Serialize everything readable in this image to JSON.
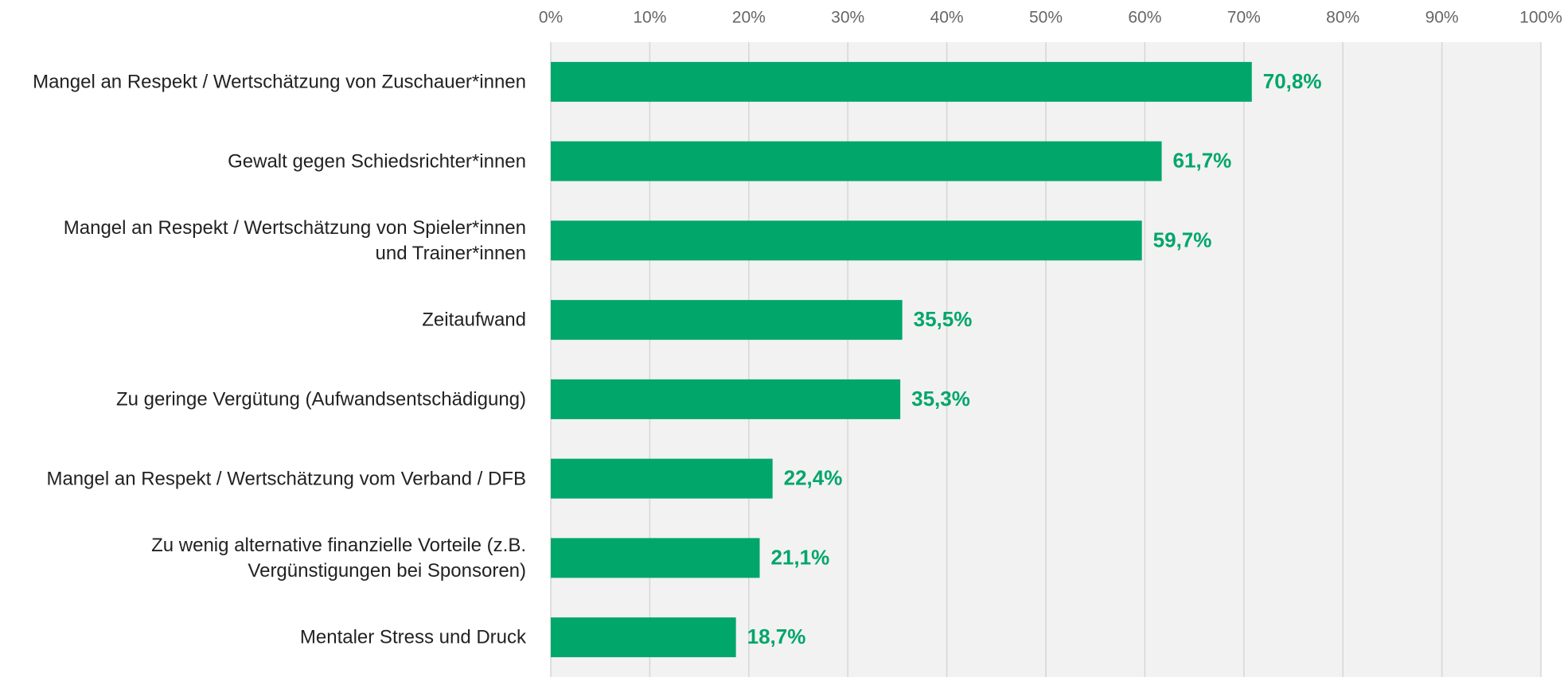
{
  "chart_data": {
    "type": "hbar",
    "categories": [
      "Mangel an Respekt / Wertschätzung von Zuschauer*innen",
      "Gewalt gegen Schiedsrichter*innen",
      "Mangel an Respekt / Wertschätzung von Spieler*innen\nund Trainer*innen",
      "Zeitaufwand",
      "Zu geringe Vergütung (Aufwandsentschädigung)",
      "Mangel an Respekt / Wertschätzung vom Verband / DFB",
      "Zu wenig alternative finanzielle Vorteile (z.B.\nVergünstigungen bei Sponsoren)",
      "Mentaler Stress und Druck"
    ],
    "values": [
      70.8,
      61.7,
      59.7,
      35.5,
      35.3,
      22.4,
      21.1,
      18.7
    ],
    "value_labels": [
      "70,8%",
      "61,7%",
      "59,7%",
      "35,5%",
      "35,3%",
      "22,4%",
      "21,1%",
      "18,7%"
    ],
    "color": "#00a66a",
    "xlim": [
      0,
      100
    ],
    "xticks": [
      {
        "value": 0,
        "label": "0%"
      },
      {
        "value": 10,
        "label": "10%"
      },
      {
        "value": 20,
        "label": "20%"
      },
      {
        "value": 30,
        "label": "30%"
      },
      {
        "value": 40,
        "label": "40%"
      },
      {
        "value": 50,
        "label": "50%"
      },
      {
        "value": 60,
        "label": "60%"
      },
      {
        "value": 70,
        "label": "70%"
      },
      {
        "value": 80,
        "label": "80%"
      },
      {
        "value": 90,
        "label": "90%"
      },
      {
        "value": 100,
        "label": "100%"
      }
    ],
    "grid": true
  }
}
